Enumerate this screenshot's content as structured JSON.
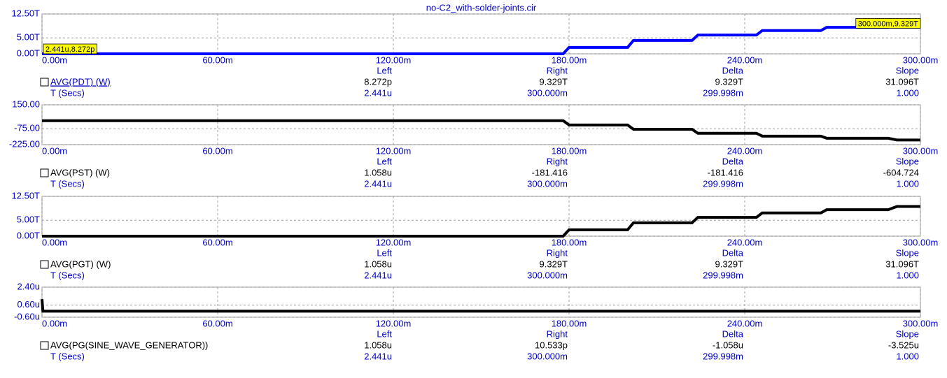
{
  "chart_data": [
    {
      "type": "line",
      "title": "no-C2_with-solder-joints.cir",
      "color": "#0000ff",
      "grid": true,
      "x": [
        0,
        178,
        180,
        200,
        202,
        222,
        224,
        244,
        246,
        266,
        268,
        289,
        292,
        300
      ],
      "xlim": [
        0,
        300
      ],
      "xticks": [
        {
          "value": 0,
          "label": "0.00m"
        },
        {
          "value": 60,
          "label": "60.00m"
        },
        {
          "value": 120,
          "label": "120.00m"
        },
        {
          "value": 180,
          "label": "180.00m"
        },
        {
          "value": 240,
          "label": "240.00m"
        },
        {
          "value": 300,
          "label": "300.00m"
        }
      ],
      "ylim": [
        0,
        12.5
      ],
      "yticks": [
        {
          "value": 0,
          "label": "0.00T"
        },
        {
          "value": 5,
          "label": "5.00T"
        },
        {
          "value": 12.5,
          "label": "12.50T"
        }
      ],
      "series": [
        {
          "name": "AVG(PDT) (W)",
          "color": "#0000ff",
          "values": [
            0,
            0,
            2.0,
            2.0,
            4.2,
            4.2,
            5.9,
            5.9,
            7.3,
            7.3,
            8.3,
            8.3,
            9.329,
            9.329
          ]
        }
      ],
      "annotations": [
        {
          "text": "2.441u,8.272p",
          "x": 0.002441,
          "y": 0
        },
        {
          "text": "300.000m,9.329T",
          "x": 300,
          "y": 9.329
        }
      ],
      "cursor_headers": [
        "Left",
        "Right",
        "Delta",
        "Slope"
      ],
      "cursor_values": [
        "8.272p",
        "9.329T",
        "9.329T",
        "31.096T"
      ],
      "x_label": "T (Secs)",
      "cursor_x": [
        "2.441u",
        "300.000m",
        "299.998m",
        "1.000"
      ]
    },
    {
      "type": "line",
      "grid": true,
      "x": [
        0,
        178,
        180,
        200,
        202,
        222,
        224,
        244,
        246,
        266,
        268,
        289,
        292,
        300
      ],
      "xlim": [
        0,
        300
      ],
      "xticks": [
        {
          "value": 0,
          "label": "0.00m"
        },
        {
          "value": 60,
          "label": "60.00m"
        },
        {
          "value": 120,
          "label": "120.00m"
        },
        {
          "value": 180,
          "label": "180.00m"
        },
        {
          "value": 240,
          "label": "240.00m"
        },
        {
          "value": 300,
          "label": "300.00m"
        }
      ],
      "ylim": [
        -225,
        150
      ],
      "yticks": [
        {
          "value": -225,
          "label": "-225.00"
        },
        {
          "value": -75,
          "label": "-75.00"
        },
        {
          "value": 150,
          "label": "150.00"
        }
      ],
      "series": [
        {
          "name": "AVG(PST) (W)",
          "color": "#000000",
          "values": [
            0,
            0,
            -40,
            -40,
            -80,
            -80,
            -118,
            -118,
            -145,
            -145,
            -165,
            -165,
            -181.416,
            -181.416
          ]
        }
      ],
      "cursor_headers": [
        "Left",
        "Right",
        "Delta",
        "Slope"
      ],
      "cursor_values": [
        "1.058u",
        "-181.416",
        "-181.416",
        "-604.724"
      ],
      "x_label": "T (Secs)",
      "cursor_x": [
        "2.441u",
        "300.000m",
        "299.998m",
        "1.000"
      ]
    },
    {
      "type": "line",
      "grid": true,
      "x": [
        0,
        178,
        180,
        200,
        202,
        222,
        224,
        244,
        246,
        266,
        268,
        289,
        292,
        300
      ],
      "xlim": [
        0,
        300
      ],
      "xticks": [
        {
          "value": 0,
          "label": "0.00m"
        },
        {
          "value": 60,
          "label": "60.00m"
        },
        {
          "value": 120,
          "label": "120.00m"
        },
        {
          "value": 180,
          "label": "180.00m"
        },
        {
          "value": 240,
          "label": "240.00m"
        },
        {
          "value": 300,
          "label": "300.00m"
        }
      ],
      "ylim": [
        0,
        12.5
      ],
      "yticks": [
        {
          "value": 0,
          "label": "0.00T"
        },
        {
          "value": 5,
          "label": "5.00T"
        },
        {
          "value": 12.5,
          "label": "12.50T"
        }
      ],
      "series": [
        {
          "name": "AVG(PGT) (W)",
          "color": "#000000",
          "values": [
            0,
            0,
            2.0,
            2.0,
            4.2,
            4.2,
            5.9,
            5.9,
            7.3,
            7.3,
            8.3,
            8.3,
            9.329,
            9.329
          ]
        }
      ],
      "cursor_headers": [
        "Left",
        "Right",
        "Delta",
        "Slope"
      ],
      "cursor_values": [
        "1.058u",
        "9.329T",
        "9.329T",
        "31.096T"
      ],
      "x_label": "T (Secs)",
      "cursor_x": [
        "2.441u",
        "300.000m",
        "299.998m",
        "1.000"
      ]
    },
    {
      "type": "line",
      "grid": true,
      "x": [
        0,
        0.3,
        300
      ],
      "xlim": [
        0,
        300
      ],
      "xticks": [
        {
          "value": 0,
          "label": "0.00m"
        },
        {
          "value": 60,
          "label": "60.00m"
        },
        {
          "value": 120,
          "label": "120.00m"
        },
        {
          "value": 180,
          "label": "180.00m"
        },
        {
          "value": 240,
          "label": "240.00m"
        },
        {
          "value": 300,
          "label": "300.00m"
        }
      ],
      "ylim": [
        -0.6,
        2.4
      ],
      "yticks": [
        {
          "value": -0.6,
          "label": "-0.60u"
        },
        {
          "value": 0.6,
          "label": "0.60u"
        },
        {
          "value": 2.4,
          "label": "2.40u"
        }
      ],
      "series": [
        {
          "name": "AVG(PG(SINE_WAVE_GENERATOR))",
          "color": "#000000",
          "values": [
            1.2,
            0,
            0
          ]
        }
      ],
      "cursor_headers": [
        "Left",
        "Right",
        "Delta",
        "Slope"
      ],
      "cursor_values": [
        "1.058u",
        "10.533p",
        "-1.058u",
        "-3.525u"
      ],
      "x_label": "T (Secs)",
      "cursor_x": [
        "2.441u",
        "300.000m",
        "299.998m",
        "1.000"
      ]
    }
  ]
}
